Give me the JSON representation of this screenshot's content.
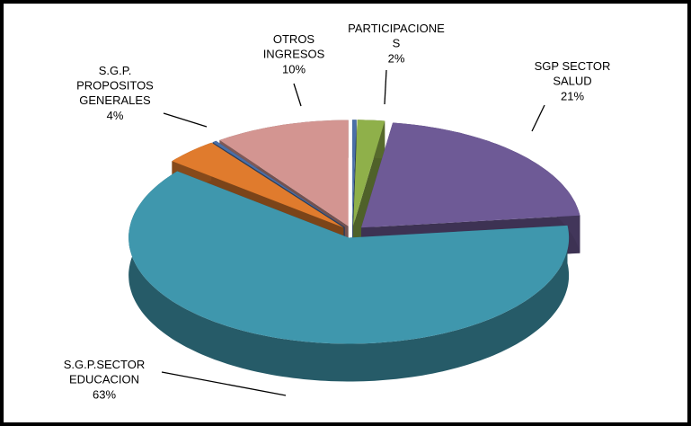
{
  "chart_data": {
    "type": "pie3d",
    "categories": [
      null,
      "PARTICIPACIONE\nS",
      "SGP SECTOR\nSALUD",
      "S.G.P.SECTOR\nEDUCACION",
      "S.G.P.\nPROPOSITOS\nGENERALES",
      null,
      "OTROS\nINGRESOS"
    ],
    "values": [
      0.3,
      2,
      21,
      63,
      4,
      0.3,
      10
    ],
    "value_labels": [
      null,
      "2%",
      "21%",
      "63%",
      "4%",
      null,
      "10%"
    ],
    "colors": [
      "#4a6fa8",
      "#8fb04a",
      "#6e5a96",
      "#3f97ad",
      "#e07b2d",
      "#4a6fa8",
      "#d39591"
    ]
  }
}
